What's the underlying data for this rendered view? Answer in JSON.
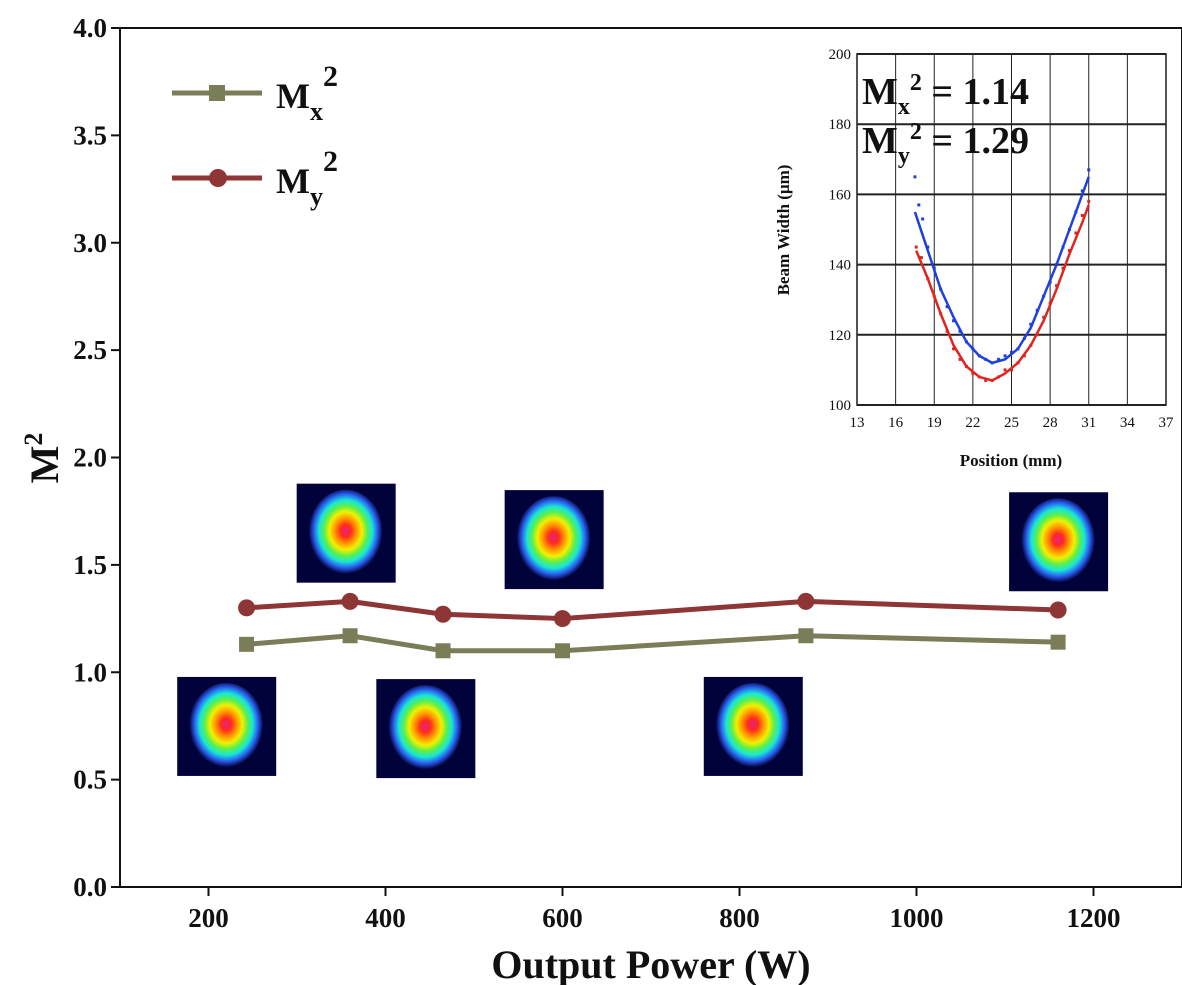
{
  "chart_data": {
    "type": "line",
    "xlabel": "Output Power (W)",
    "ylabel": "M",
    "ylabel_superscript": "2",
    "xlim": [
      100,
      1300
    ],
    "ylim": [
      0,
      4.0
    ],
    "x_ticks": [
      200,
      400,
      600,
      800,
      1000,
      1200
    ],
    "y_ticks": [
      "0.0",
      "0.5",
      "1.0",
      "1.5",
      "2.0",
      "2.5",
      "3.0",
      "3.5",
      "4.0"
    ],
    "legend_position": "top-left",
    "series": [
      {
        "name": "Mx2",
        "label_base": "M",
        "label_sub": "x",
        "label_sup": "2",
        "marker": "square",
        "color": "#7a7d58",
        "x": [
          243,
          360,
          465,
          600,
          875,
          1160
        ],
        "y": [
          1.13,
          1.17,
          1.1,
          1.1,
          1.17,
          1.14
        ]
      },
      {
        "name": "My2",
        "label_base": "M",
        "label_sub": "y",
        "label_sup": "2",
        "marker": "circle",
        "color": "#8e3535",
        "x": [
          243,
          360,
          465,
          600,
          875,
          1160
        ],
        "y": [
          1.3,
          1.33,
          1.27,
          1.25,
          1.33,
          1.29
        ]
      }
    ],
    "beam_profiles": [
      {
        "x": 220,
        "y": 0.75
      },
      {
        "x": 355,
        "y": 1.65
      },
      {
        "x": 445,
        "y": 0.74
      },
      {
        "x": 590,
        "y": 1.62
      },
      {
        "x": 815,
        "y": 0.75
      },
      {
        "x": 1160,
        "y": 1.61
      }
    ],
    "inset": {
      "type": "scatter",
      "xlabel": "Position (mm)",
      "ylabel": "Beam Width (μm)",
      "xlim": [
        13,
        37
      ],
      "ylim": [
        100,
        200
      ],
      "x_ticks": [
        13,
        16,
        19,
        22,
        25,
        28,
        31,
        34,
        37
      ],
      "y_ticks": [
        100,
        120,
        140,
        160,
        180,
        200
      ],
      "grid": true,
      "annotations": [
        {
          "base": "M",
          "sub": "x",
          "sup": "2",
          "rest": " = 1.14"
        },
        {
          "base": "M",
          "sub": "y",
          "sup": "2",
          "rest": " = 1.29"
        }
      ],
      "series": [
        {
          "color": "#1f3fe0",
          "points": [
            [
              17.5,
              165
            ],
            [
              17.8,
              157
            ],
            [
              18.1,
              153
            ],
            [
              18.5,
              145
            ],
            [
              19,
              139
            ],
            [
              19.5,
              133
            ],
            [
              20,
              128
            ],
            [
              20.5,
              124
            ],
            [
              21,
              121
            ],
            [
              21.5,
              118
            ],
            [
              22,
              116
            ],
            [
              22.5,
              114
            ],
            [
              23,
              113
            ],
            [
              23.5,
              112
            ],
            [
              24,
              113
            ],
            [
              24.5,
              114
            ],
            [
              25,
              115
            ],
            [
              25.5,
              116
            ],
            [
              26,
              119
            ],
            [
              26.5,
              123
            ],
            [
              27,
              127
            ],
            [
              27.5,
              131
            ],
            [
              28,
              135
            ],
            [
              28.5,
              140
            ],
            [
              29,
              145
            ],
            [
              29.5,
              150
            ],
            [
              30,
              155
            ],
            [
              30.5,
              161
            ],
            [
              31,
              167
            ]
          ],
          "fit": [
            [
              17.5,
              155
            ],
            [
              18.5,
              144
            ],
            [
              19.5,
              133
            ],
            [
              20.5,
              125
            ],
            [
              21.5,
              118
            ],
            [
              22.5,
              114
            ],
            [
              23.5,
              112
            ],
            [
              24.5,
              113
            ],
            [
              25.5,
              116
            ],
            [
              26.5,
              122
            ],
            [
              27.5,
              131
            ],
            [
              28.5,
              140
            ],
            [
              29.5,
              150
            ],
            [
              30.5,
              160
            ],
            [
              31,
              165
            ]
          ]
        },
        {
          "color": "#e0241f",
          "points": [
            [
              17.6,
              145
            ],
            [
              18,
              142
            ],
            [
              18.5,
              136
            ],
            [
              19,
              131
            ],
            [
              19.5,
              126
            ],
            [
              20,
              121
            ],
            [
              20.5,
              116
            ],
            [
              21,
              113
            ],
            [
              21.5,
              111
            ],
            [
              22,
              109
            ],
            [
              22.5,
              108
            ],
            [
              23,
              107
            ],
            [
              23.5,
              107
            ],
            [
              24,
              108
            ],
            [
              24.5,
              110
            ],
            [
              25,
              110
            ],
            [
              25.5,
              112
            ],
            [
              26,
              114
            ],
            [
              26.5,
              117
            ],
            [
              27,
              120
            ],
            [
              27.5,
              125
            ],
            [
              28,
              129
            ],
            [
              28.5,
              134
            ],
            [
              29,
              139
            ],
            [
              29.5,
              144
            ],
            [
              30,
              149
            ],
            [
              30.5,
              154
            ],
            [
              31,
              158
            ]
          ],
          "fit": [
            [
              17.6,
              144
            ],
            [
              18.5,
              136
            ],
            [
              19.5,
              126
            ],
            [
              20.5,
              117
            ],
            [
              21.5,
              111
            ],
            [
              22.5,
              108
            ],
            [
              23.5,
              107
            ],
            [
              24.5,
              109
            ],
            [
              25.5,
              112
            ],
            [
              26.5,
              117
            ],
            [
              27.5,
              124
            ],
            [
              28.5,
              133
            ],
            [
              29.5,
              143
            ],
            [
              30.5,
              152
            ],
            [
              31,
              157
            ]
          ]
        }
      ]
    }
  }
}
